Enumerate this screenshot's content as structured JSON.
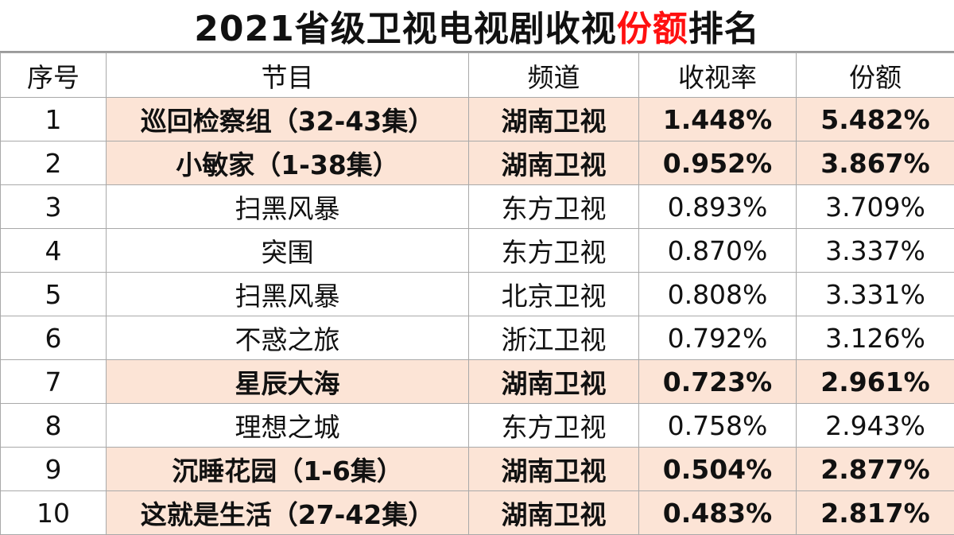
{
  "title": {
    "prefix": "2021省级卫视电视剧收视",
    "accent": "份额",
    "suffix": "排名",
    "accent_color": "#ff1010"
  },
  "columns": [
    "序号",
    "节目",
    "频道",
    "收视率",
    "份额"
  ],
  "highlight_color": "#fce4d6",
  "rows": [
    {
      "rank": "1",
      "program": "巡回检察组（32-43集）",
      "channel": "湖南卫视",
      "rating": "1.448%",
      "share": "5.482%",
      "highlight": true
    },
    {
      "rank": "2",
      "program": "小敏家（1-38集）",
      "channel": "湖南卫视",
      "rating": "0.952%",
      "share": "3.867%",
      "highlight": true
    },
    {
      "rank": "3",
      "program": "扫黑风暴",
      "channel": "东方卫视",
      "rating": "0.893%",
      "share": "3.709%",
      "highlight": false
    },
    {
      "rank": "4",
      "program": "突围",
      "channel": "东方卫视",
      "rating": "0.870%",
      "share": "3.337%",
      "highlight": false
    },
    {
      "rank": "5",
      "program": "扫黑风暴",
      "channel": "北京卫视",
      "rating": "0.808%",
      "share": "3.331%",
      "highlight": false
    },
    {
      "rank": "6",
      "program": "不惑之旅",
      "channel": "浙江卫视",
      "rating": "0.792%",
      "share": "3.126%",
      "highlight": false
    },
    {
      "rank": "7",
      "program": "星辰大海",
      "channel": "湖南卫视",
      "rating": "0.723%",
      "share": "2.961%",
      "highlight": true
    },
    {
      "rank": "8",
      "program": "理想之城",
      "channel": "东方卫视",
      "rating": "0.758%",
      "share": "2.943%",
      "highlight": false
    },
    {
      "rank": "9",
      "program": "沉睡花园（1-6集）",
      "channel": "湖南卫视",
      "rating": "0.504%",
      "share": "2.877%",
      "highlight": true
    },
    {
      "rank": "10",
      "program": "这就是生活（27-42集）",
      "channel": "湖南卫视",
      "rating": "0.483%",
      "share": "2.817%",
      "highlight": true
    }
  ]
}
